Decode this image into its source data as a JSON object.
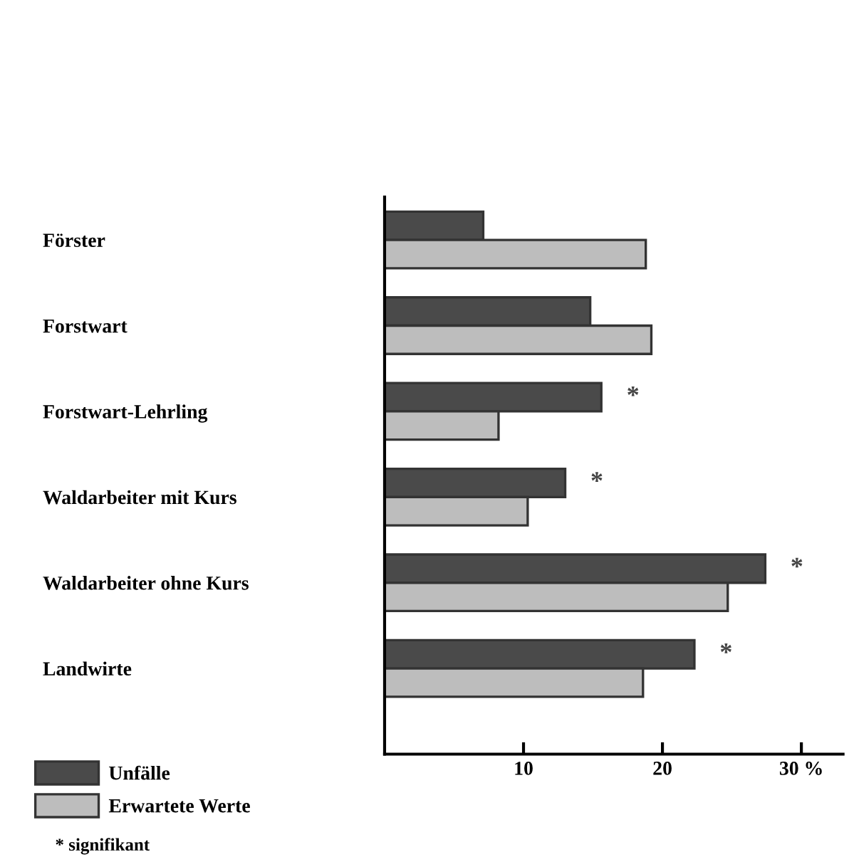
{
  "chart_data": {
    "type": "bar",
    "orientation": "horizontal",
    "categories": [
      "Förster",
      "Forstwart",
      "Forstwart-Lehrling",
      "Waldarbeiter mit Kurs",
      "Waldarbeiter ohne Kurs",
      "Landwirte"
    ],
    "series": [
      {
        "name": "Unfälle",
        "color": "#4a4a4a",
        "values": [
          7.1,
          14.8,
          15.6,
          13.0,
          27.4,
          22.3
        ]
      },
      {
        "name": "Erwartete Werte",
        "color": "#bdbdbd",
        "values": [
          18.8,
          19.2,
          8.2,
          10.3,
          24.7,
          18.6
        ]
      }
    ],
    "xlim": [
      0,
      33
    ],
    "xticks": [
      10,
      20,
      {
        "value": 30,
        "label": "30 %"
      }
    ],
    "annotations": [
      {
        "text": "*",
        "x": 15.6,
        "y": "Forstwart-Lehrling"
      },
      {
        "text": "*",
        "x": 13.0,
        "y": "Waldarbeiter mit Kurs"
      },
      {
        "text": "*",
        "x": 27.4,
        "y": "Waldarbeiter ohne Kurs"
      },
      {
        "text": "*",
        "x": 22.3,
        "y": "Landwirte"
      },
      "* signifikant"
    ],
    "legend": "bottom left",
    "grid": false
  }
}
